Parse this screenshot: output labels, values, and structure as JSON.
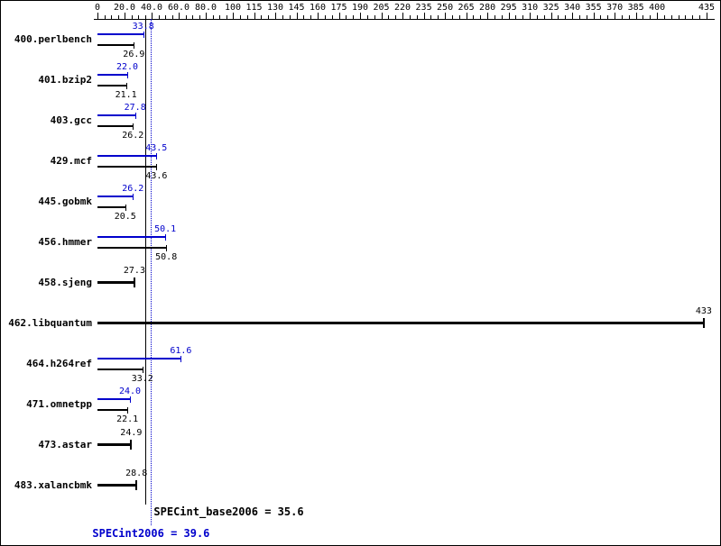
{
  "chart_data": {
    "type": "bar",
    "orientation": "horizontal",
    "title": "",
    "legend": "none",
    "grid": "off",
    "axis": {
      "min": 0,
      "max": 435,
      "segment_break": 100,
      "minor_tick_step": 5,
      "major_tick_values": [
        0,
        20,
        40,
        60,
        80,
        100,
        115,
        130,
        145,
        160,
        175,
        190,
        205,
        220,
        235,
        250,
        265,
        280,
        295,
        310,
        325,
        340,
        355,
        370,
        385,
        400,
        435
      ],
      "major_tick_labels": [
        "0",
        "20.0",
        "40.0",
        "60.0",
        "80.0",
        "100",
        "115",
        "130",
        "145",
        "160",
        "175",
        "190",
        "205",
        "220",
        "235",
        "250",
        "265",
        "280",
        "295",
        "310",
        "325",
        "340",
        "355",
        "370",
        "385",
        "400",
        "435"
      ]
    },
    "series_colors": {
      "peak": "#0000cc",
      "base": "#000000"
    },
    "benchmarks": [
      {
        "name": "400.perlbench",
        "peak": 33.8,
        "peak_text": "33.8",
        "base": 26.9,
        "base_text": "26.9"
      },
      {
        "name": "401.bzip2",
        "peak": 22.0,
        "peak_text": "22.0",
        "base": 21.1,
        "base_text": "21.1"
      },
      {
        "name": "403.gcc",
        "peak": 27.8,
        "peak_text": "27.8",
        "base": 26.2,
        "base_text": "26.2"
      },
      {
        "name": "429.mcf",
        "peak": 43.5,
        "peak_text": "43.5",
        "base": 43.6,
        "base_text": "43.6"
      },
      {
        "name": "445.gobmk",
        "peak": 26.2,
        "peak_text": "26.2",
        "base": 20.5,
        "base_text": "20.5"
      },
      {
        "name": "456.hmmer",
        "peak": 50.1,
        "peak_text": "50.1",
        "base": 50.8,
        "base_text": "50.8"
      },
      {
        "name": "458.sjeng",
        "base": 27.3,
        "base_text": "27.3"
      },
      {
        "name": "462.libquantum",
        "base": 433,
        "base_text": "433"
      },
      {
        "name": "464.h264ref",
        "peak": 61.6,
        "peak_text": "61.6",
        "base": 33.2,
        "base_text": "33.2"
      },
      {
        "name": "471.omnetpp",
        "peak": 24.0,
        "peak_text": "24.0",
        "base": 22.1,
        "base_text": "22.1"
      },
      {
        "name": "473.astar",
        "base": 24.9,
        "base_text": "24.9"
      },
      {
        "name": "483.xalancbmk",
        "base": 28.8,
        "base_text": "28.8"
      }
    ],
    "means": {
      "base_value": 35.6,
      "base_label": "SPECint_base2006 = 35.6",
      "peak_value": 39.6,
      "peak_label": "SPECint2006 = 39.6"
    }
  }
}
